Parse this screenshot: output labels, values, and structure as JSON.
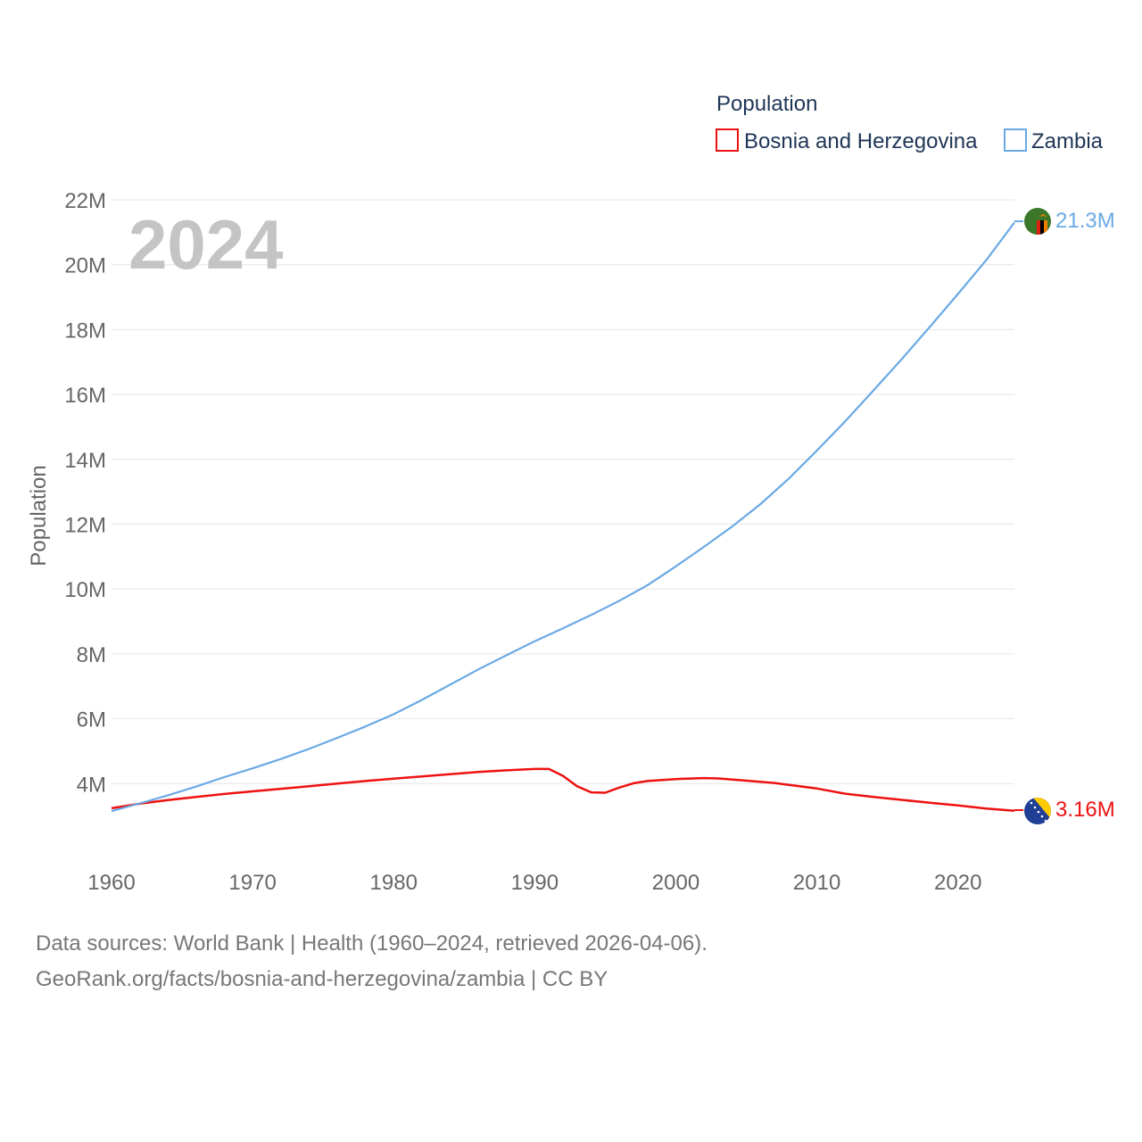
{
  "chart_data": {
    "type": "line",
    "title": "Population",
    "ylabel": "Population",
    "xlabel": "",
    "year_display": "2024",
    "xlim": [
      1960,
      2024
    ],
    "ylim": [
      2000000,
      22000000
    ],
    "x_ticks": [
      {
        "value": 1960,
        "label": "1960"
      },
      {
        "value": 1970,
        "label": "1970"
      },
      {
        "value": 1980,
        "label": "1980"
      },
      {
        "value": 1990,
        "label": "1990"
      },
      {
        "value": 2000,
        "label": "2000"
      },
      {
        "value": 2010,
        "label": "2010"
      },
      {
        "value": 2020,
        "label": "2020"
      }
    ],
    "y_ticks": [
      {
        "value": 4000000,
        "label": "4M"
      },
      {
        "value": 6000000,
        "label": "6M"
      },
      {
        "value": 8000000,
        "label": "8M"
      },
      {
        "value": 10000000,
        "label": "10M"
      },
      {
        "value": 12000000,
        "label": "12M"
      },
      {
        "value": 14000000,
        "label": "14M"
      },
      {
        "value": 16000000,
        "label": "16M"
      },
      {
        "value": 18000000,
        "label": "18M"
      },
      {
        "value": 20000000,
        "label": "20M"
      },
      {
        "value": 22000000,
        "label": "22M"
      }
    ],
    "legend_placement": "top-right",
    "series": [
      {
        "name": "Bosnia and Herzegovina",
        "color": "#ee1111",
        "end_label": "3.16M",
        "flag_icon": "bosnia-flag-icon",
        "x": [
          1960,
          1962,
          1964,
          1966,
          1968,
          1970,
          1972,
          1974,
          1976,
          1978,
          1980,
          1982,
          1984,
          1986,
          1988,
          1990,
          1991,
          1992,
          1993,
          1994,
          1995,
          1996,
          1997,
          1998,
          2000,
          2002,
          2003,
          2005,
          2007,
          2010,
          2012,
          2014,
          2016,
          2018,
          2020,
          2022,
          2024
        ],
        "values": [
          3240000,
          3380000,
          3490000,
          3590000,
          3680000,
          3760000,
          3840000,
          3920000,
          4000000,
          4080000,
          4150000,
          4220000,
          4290000,
          4360000,
          4410000,
          4450000,
          4450000,
          4240000,
          3920000,
          3730000,
          3720000,
          3880000,
          4010000,
          4080000,
          4140000,
          4170000,
          4160000,
          4090000,
          4020000,
          3850000,
          3690000,
          3590000,
          3500000,
          3410000,
          3330000,
          3230000,
          3160000
        ]
      },
      {
        "name": "Zambia",
        "color": "#6aa9e4",
        "end_label": "21.3M",
        "flag_icon": "zambia-flag-icon",
        "x": [
          1960,
          1962,
          1964,
          1966,
          1968,
          1970,
          1972,
          1974,
          1976,
          1978,
          1980,
          1982,
          1984,
          1986,
          1988,
          1990,
          1992,
          1994,
          1996,
          1998,
          2000,
          2002,
          2004,
          2006,
          2008,
          2010,
          2012,
          2014,
          2016,
          2018,
          2020,
          2022,
          2024
        ],
        "values": [
          3150000,
          3390000,
          3640000,
          3910000,
          4200000,
          4470000,
          4760000,
          5070000,
          5410000,
          5760000,
          6140000,
          6580000,
          7050000,
          7520000,
          7960000,
          8390000,
          8790000,
          9200000,
          9640000,
          10120000,
          10700000,
          11300000,
          11930000,
          12620000,
          13400000,
          14270000,
          15170000,
          16120000,
          17080000,
          18080000,
          19100000,
          20140000,
          21300000
        ]
      }
    ]
  },
  "legend": {
    "title": "Population",
    "items": [
      "Bosnia and Herzegovina",
      "Zambia"
    ]
  },
  "footer": {
    "line1": "Data sources: World Bank | Health (1960–2024, retrieved 2026-04-06).",
    "line2": "GeoRank.org/facts/bosnia-and-herzegovina/zambia | CC BY"
  }
}
